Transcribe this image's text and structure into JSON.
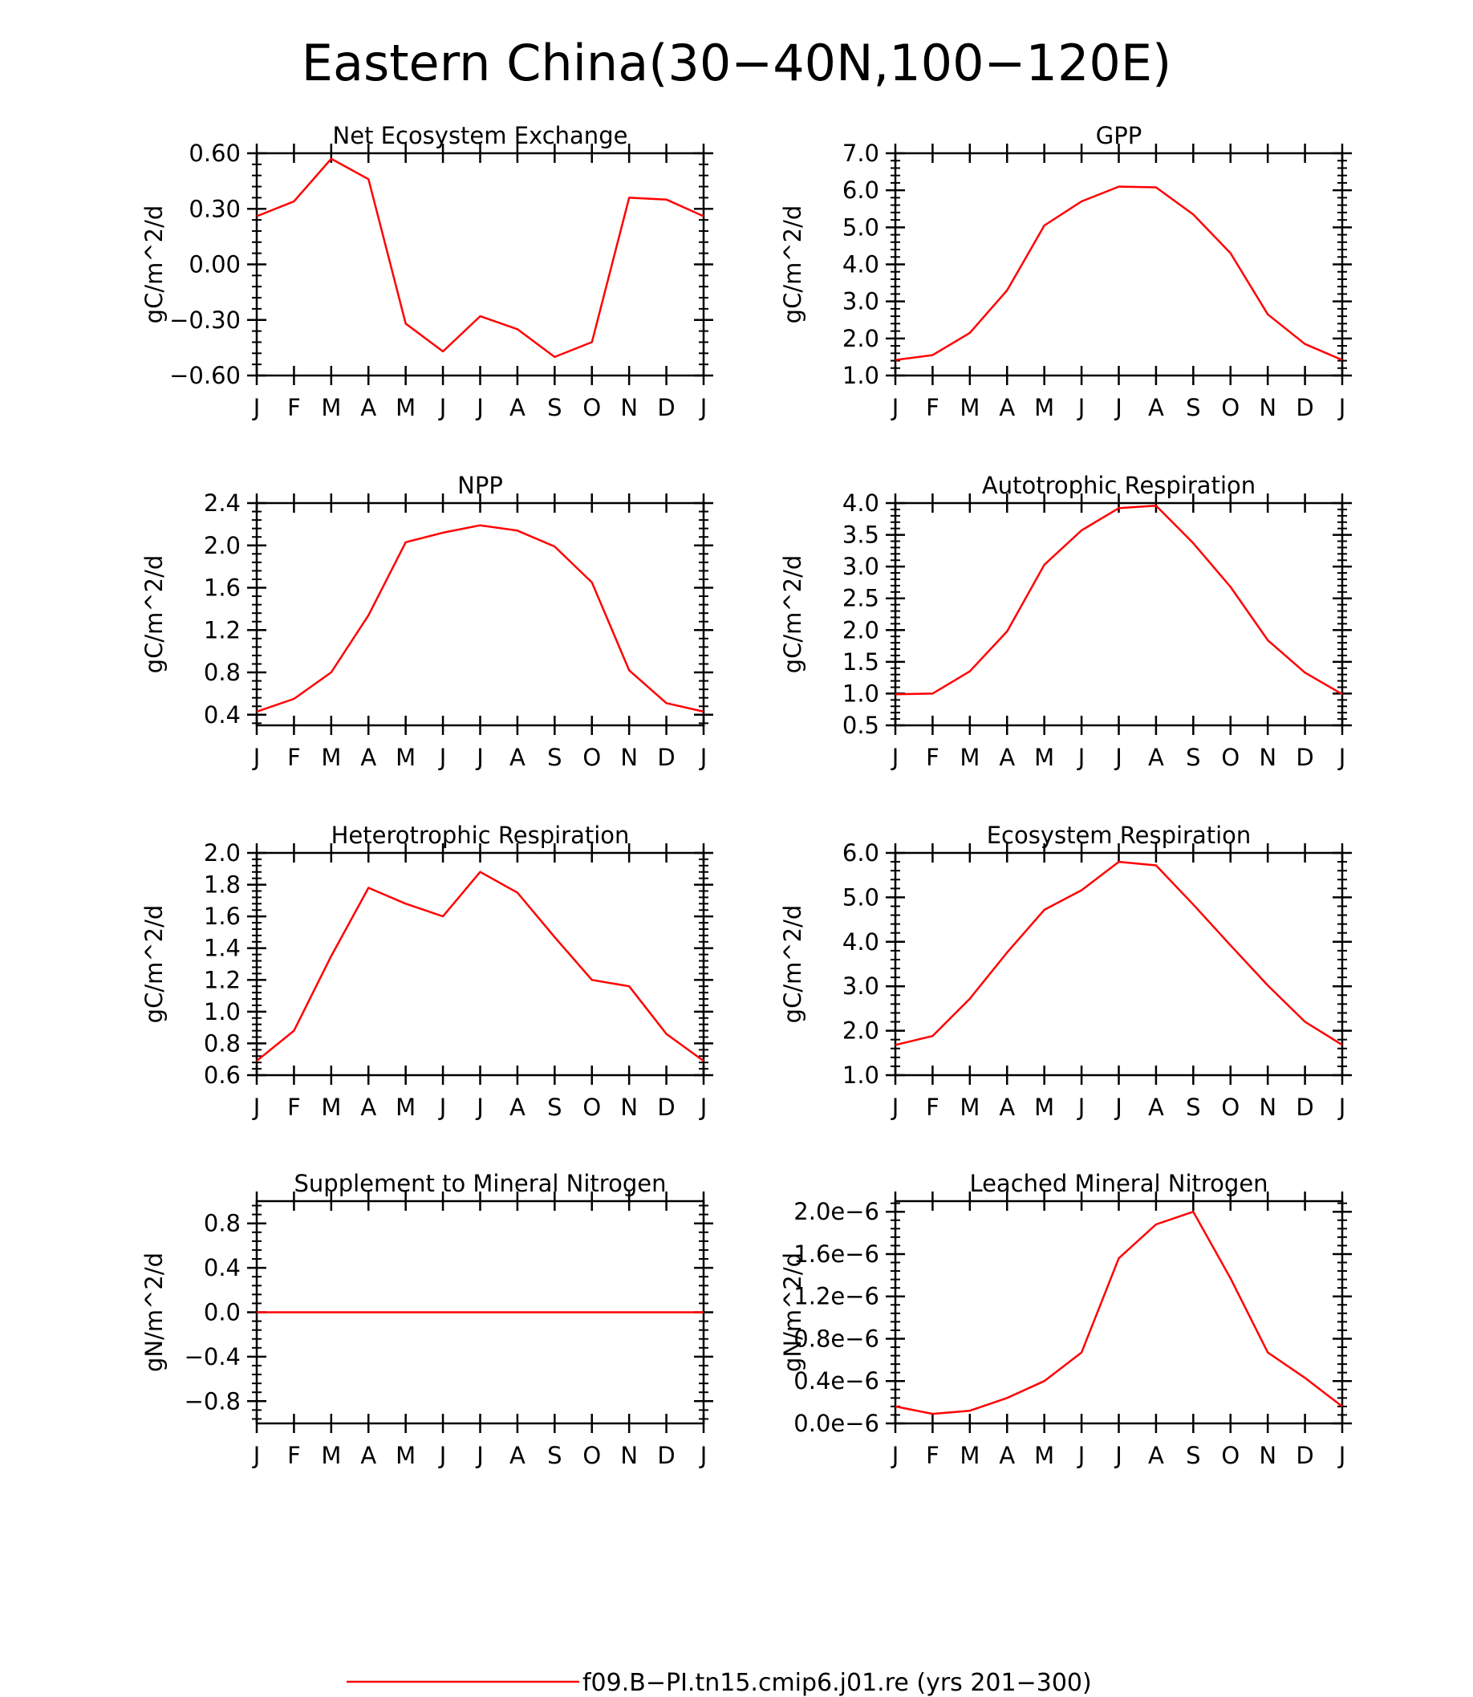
{
  "figure_title": "Eastern China(30-40N,100-120E)",
  "legend": {
    "label": "f09.B-PI.tn15.cmip6.j01.re (yrs 201-300)",
    "color": "#ff0000"
  },
  "months": [
    "J",
    "F",
    "M",
    "A",
    "M",
    "J",
    "J",
    "A",
    "S",
    "O",
    "N",
    "D",
    "J"
  ],
  "line_color": "#ff0000",
  "chart_data": [
    {
      "type": "line",
      "title": "Net Ecosystem Exchange",
      "ylabel": "gC/m^2/d",
      "ylim": [
        -0.6,
        0.6
      ],
      "yticks": [
        -0.6,
        -0.3,
        0.0,
        0.3,
        0.6
      ],
      "ytick_labels": [
        "-0.60",
        "-0.30",
        "0.00",
        "0.30",
        "0.60"
      ],
      "values": [
        0.26,
        0.34,
        0.57,
        0.46,
        -0.32,
        -0.47,
        -0.28,
        -0.35,
        -0.5,
        -0.42,
        0.36,
        0.35,
        0.26
      ]
    },
    {
      "type": "line",
      "title": "GPP",
      "ylabel": "gC/m^2/d",
      "ylim": [
        1.0,
        7.0
      ],
      "yticks": [
        1,
        2,
        3,
        4,
        5,
        6,
        7
      ],
      "ytick_labels": [
        "1.0",
        "2.0",
        "3.0",
        "4.0",
        "5.0",
        "6.0",
        "7.0"
      ],
      "values": [
        1.42,
        1.55,
        2.15,
        3.3,
        5.05,
        5.7,
        6.1,
        6.08,
        5.35,
        4.3,
        2.65,
        1.85,
        1.42
      ]
    },
    {
      "type": "line",
      "title": "NPP",
      "ylabel": "gC/m^2/d",
      "ylim": [
        0.3,
        2.4
      ],
      "yticks": [
        0.4,
        0.8,
        1.2,
        1.6,
        2.0,
        2.4
      ],
      "ytick_labels": [
        "0.4",
        "0.8",
        "1.2",
        "1.6",
        "2.0",
        "2.4"
      ],
      "values": [
        0.43,
        0.55,
        0.8,
        1.34,
        2.03,
        2.12,
        2.19,
        2.14,
        1.99,
        1.65,
        0.82,
        0.51,
        0.43
      ]
    },
    {
      "type": "line",
      "title": "Autotrophic Respiration",
      "ylabel": "gC/m^2/d",
      "ylim": [
        0.5,
        4.0
      ],
      "yticks": [
        0.5,
        1.0,
        1.5,
        2.0,
        2.5,
        3.0,
        3.5,
        4.0
      ],
      "ytick_labels": [
        "0.5",
        "1.0",
        "1.5",
        "2.0",
        "2.5",
        "3.0",
        "3.5",
        "4.0"
      ],
      "values": [
        0.99,
        1.0,
        1.35,
        1.98,
        3.03,
        3.57,
        3.92,
        3.96,
        3.37,
        2.68,
        1.84,
        1.33,
        0.99
      ]
    },
    {
      "type": "line",
      "title": "Heterotrophic Respiration",
      "ylabel": "gC/m^2/d",
      "ylim": [
        0.6,
        2.0
      ],
      "yticks": [
        0.6,
        0.8,
        1.0,
        1.2,
        1.4,
        1.6,
        1.8,
        2.0
      ],
      "ytick_labels": [
        "0.6",
        "0.8",
        "1.0",
        "1.2",
        "1.4",
        "1.6",
        "1.8",
        "2.0"
      ],
      "values": [
        0.69,
        0.88,
        1.35,
        1.78,
        1.68,
        1.6,
        1.88,
        1.75,
        1.47,
        1.2,
        1.16,
        0.86,
        0.69
      ]
    },
    {
      "type": "line",
      "title": "Ecosystem Respiration",
      "ylabel": "gC/m^2/d",
      "ylim": [
        1.0,
        6.0
      ],
      "yticks": [
        1,
        2,
        3,
        4,
        5,
        6
      ],
      "ytick_labels": [
        "1.0",
        "2.0",
        "3.0",
        "4.0",
        "5.0",
        "6.0"
      ],
      "values": [
        1.68,
        1.88,
        2.72,
        3.76,
        4.72,
        5.16,
        5.8,
        5.72,
        4.84,
        3.92,
        3.02,
        2.2,
        1.68
      ]
    },
    {
      "type": "line",
      "title": "Supplement to Mineral Nitrogen",
      "ylabel": "gN/m^2/d",
      "ylim": [
        -1.0,
        1.0
      ],
      "yticks": [
        -0.8,
        -0.4,
        0.0,
        0.4,
        0.8
      ],
      "ytick_labels": [
        "-0.8",
        "-0.4",
        "0.0",
        "0.4",
        "0.8"
      ],
      "values": [
        0,
        0,
        0,
        0,
        0,
        0,
        0,
        0,
        0,
        0,
        0,
        0,
        0
      ]
    },
    {
      "type": "line",
      "title": "Leached Mineral Nitrogen",
      "ylabel": "gN/m^2/d",
      "ylim": [
        0.0,
        2.1
      ],
      "yticks": [
        0.0,
        0.4,
        0.8,
        1.2,
        1.6,
        2.0
      ],
      "ytick_labels": [
        "0.0e-6",
        "0.4e-6",
        "0.8e-6",
        "1.2e-6",
        "1.6e-6",
        "2.0e-6"
      ],
      "value_scale": "1e-6",
      "values": [
        0.16,
        0.09,
        0.12,
        0.24,
        0.4,
        0.67,
        1.56,
        1.88,
        2.0,
        1.37,
        0.67,
        0.43,
        0.16
      ]
    }
  ]
}
